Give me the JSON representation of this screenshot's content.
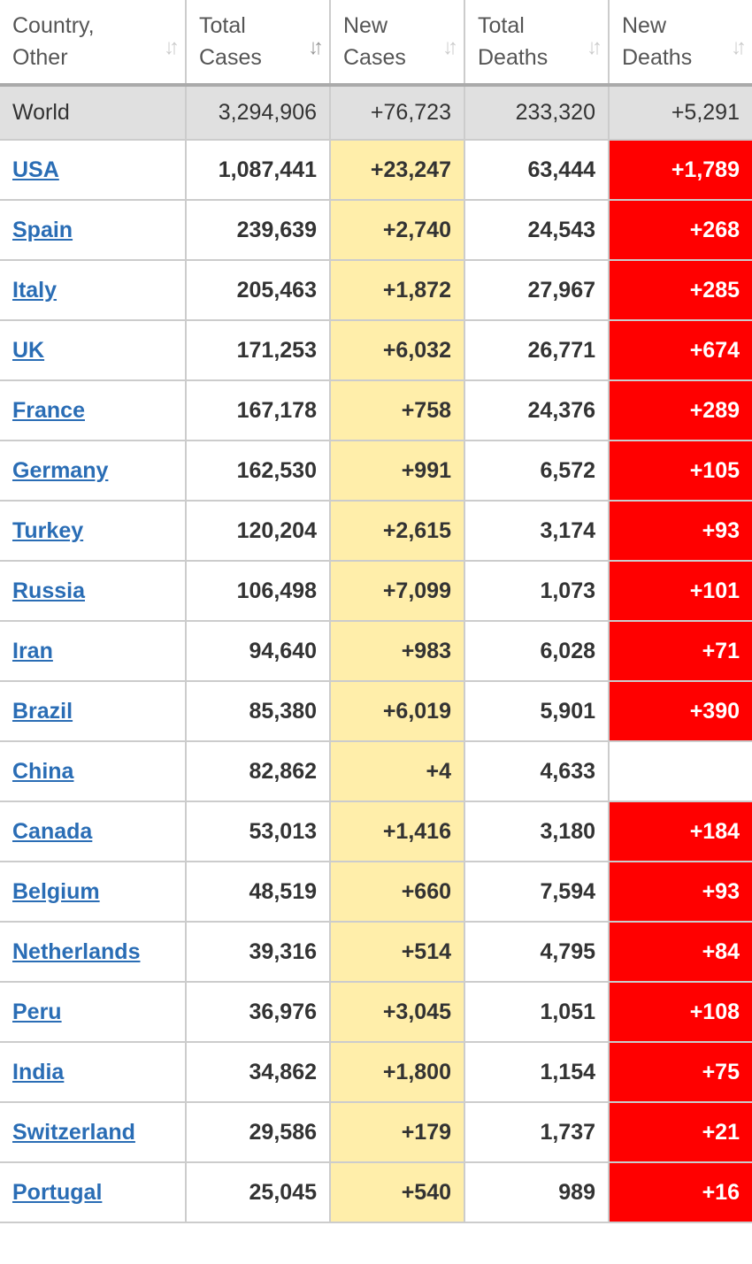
{
  "columns": [
    {
      "label": "Country, Other",
      "line1": "Country,",
      "line2": "Other"
    },
    {
      "label": "Total Cases",
      "line1": "Total",
      "line2": "Cases",
      "sorted": true
    },
    {
      "label": "New Cases",
      "line1": "New",
      "line2": "Cases"
    },
    {
      "label": "Total Deaths",
      "line1": "Total",
      "line2": "Deaths"
    },
    {
      "label": "New Deaths",
      "line1": "New",
      "line2": "Deaths"
    }
  ],
  "world": {
    "country": "World",
    "total_cases": "3,294,906",
    "new_cases": "+76,723",
    "total_deaths": "233,320",
    "new_deaths": "+5,291"
  },
  "rows": [
    {
      "country": "USA",
      "total_cases": "1,087,441",
      "new_cases": "+23,247",
      "total_deaths": "63,444",
      "new_deaths": "+1,789"
    },
    {
      "country": "Spain",
      "total_cases": "239,639",
      "new_cases": "+2,740",
      "total_deaths": "24,543",
      "new_deaths": "+268"
    },
    {
      "country": "Italy",
      "total_cases": "205,463",
      "new_cases": "+1,872",
      "total_deaths": "27,967",
      "new_deaths": "+285"
    },
    {
      "country": "UK",
      "total_cases": "171,253",
      "new_cases": "+6,032",
      "total_deaths": "26,771",
      "new_deaths": "+674"
    },
    {
      "country": "France",
      "total_cases": "167,178",
      "new_cases": "+758",
      "total_deaths": "24,376",
      "new_deaths": "+289"
    },
    {
      "country": "Germany",
      "total_cases": "162,530",
      "new_cases": "+991",
      "total_deaths": "6,572",
      "new_deaths": "+105"
    },
    {
      "country": "Turkey",
      "total_cases": "120,204",
      "new_cases": "+2,615",
      "total_deaths": "3,174",
      "new_deaths": "+93"
    },
    {
      "country": "Russia",
      "total_cases": "106,498",
      "new_cases": "+7,099",
      "total_deaths": "1,073",
      "new_deaths": "+101"
    },
    {
      "country": "Iran",
      "total_cases": "94,640",
      "new_cases": "+983",
      "total_deaths": "6,028",
      "new_deaths": "+71"
    },
    {
      "country": "Brazil",
      "total_cases": "85,380",
      "new_cases": "+6,019",
      "total_deaths": "5,901",
      "new_deaths": "+390"
    },
    {
      "country": "China",
      "total_cases": "82,862",
      "new_cases": "+4",
      "total_deaths": "4,633",
      "new_deaths": ""
    },
    {
      "country": "Canada",
      "total_cases": "53,013",
      "new_cases": "+1,416",
      "total_deaths": "3,180",
      "new_deaths": "+184"
    },
    {
      "country": "Belgium",
      "total_cases": "48,519",
      "new_cases": "+660",
      "total_deaths": "7,594",
      "new_deaths": "+93"
    },
    {
      "country": "Netherlands",
      "total_cases": "39,316",
      "new_cases": "+514",
      "total_deaths": "4,795",
      "new_deaths": "+84"
    },
    {
      "country": "Peru",
      "total_cases": "36,976",
      "new_cases": "+3,045",
      "total_deaths": "1,051",
      "new_deaths": "+108"
    },
    {
      "country": "India",
      "total_cases": "34,862",
      "new_cases": "+1,800",
      "total_deaths": "1,154",
      "new_deaths": "+75"
    },
    {
      "country": "Switzerland",
      "total_cases": "29,586",
      "new_cases": "+179",
      "total_deaths": "1,737",
      "new_deaths": "+21"
    },
    {
      "country": "Portugal",
      "total_cases": "25,045",
      "new_cases": "+540",
      "total_deaths": "989",
      "new_deaths": "+16"
    }
  ],
  "colors": {
    "new_cases_bg": "#ffeeaa",
    "new_deaths_bg": "#ff0000",
    "link": "#2a6db5",
    "world_bg": "#e0e0e0"
  },
  "icons": {
    "sort": "sort-arrows-icon"
  }
}
